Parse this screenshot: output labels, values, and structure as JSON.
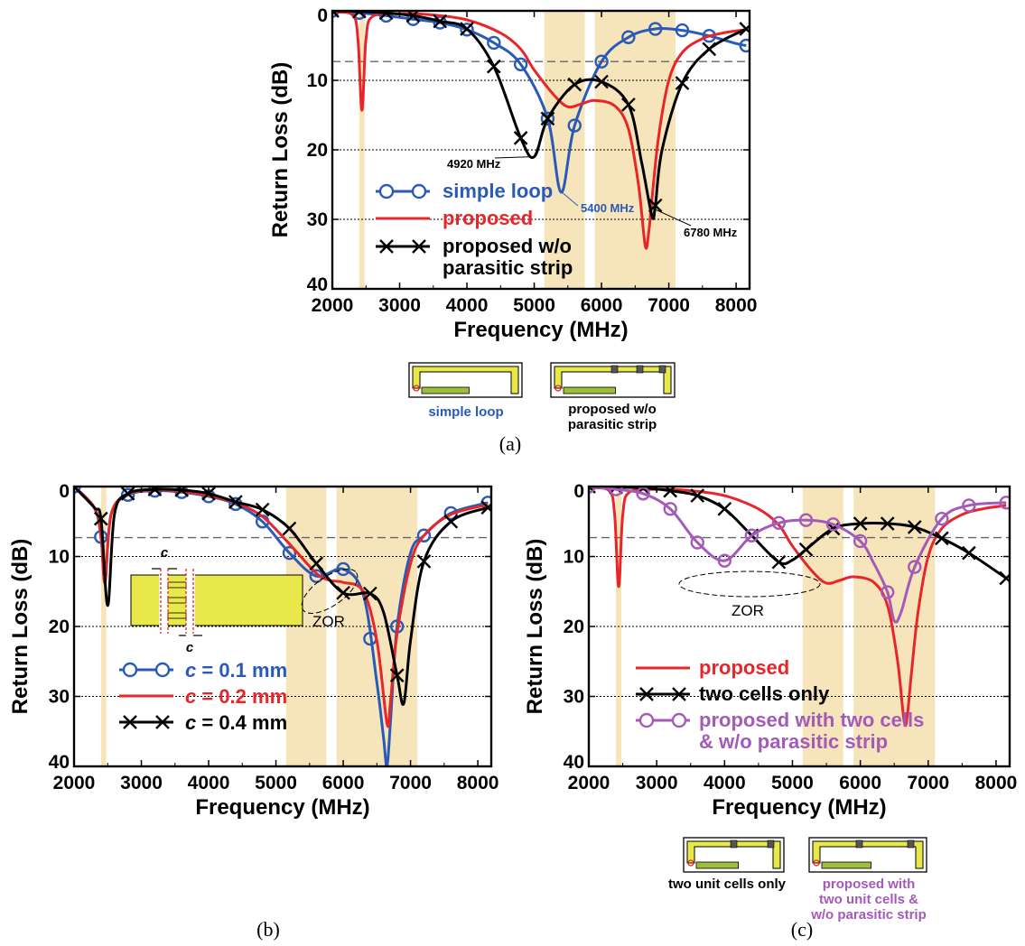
{
  "chart_data": [
    {
      "panel": "(a)",
      "type": "line",
      "xlabel": "Frequency (MHz)",
      "ylabel": "Return Loss (dB)",
      "xlim": [
        2000,
        8200
      ],
      "ylim": [
        40,
        0
      ],
      "xticks": [
        "2000",
        "3000",
        "4000",
        "5000",
        "6000",
        "7000",
        "8000"
      ],
      "yticks": [
        "0",
        "10",
        "20",
        "30",
        "40"
      ],
      "reference_line_db": 7.3,
      "bands_mhz": [
        [
          2400,
          2480
        ],
        [
          5150,
          5750
        ],
        [
          5900,
          7100
        ]
      ],
      "series": [
        {
          "name": "simple loop",
          "color": "#2a5ab8",
          "marker": "circle",
          "x": [
            2000,
            2400,
            2800,
            3200,
            3600,
            4000,
            4400,
            4800,
            5200,
            5400,
            5600,
            6000,
            6400,
            6800,
            7200,
            7600,
            8000,
            8150
          ],
          "y": [
            0,
            0.3,
            0.7,
            1.2,
            1.7,
            2.7,
            4.6,
            7.7,
            15.5,
            26.1,
            16.5,
            7.3,
            3.8,
            2.6,
            2.8,
            3.6,
            4.7,
            5.0
          ],
          "markers_x": [
            2000,
            2400,
            2800,
            3200,
            3600,
            4000,
            4400,
            4800,
            5200,
            5600,
            6000,
            6400,
            6800,
            7200,
            7600,
            8150
          ]
        },
        {
          "name": "proposed",
          "color": "#e8262a",
          "marker": "none",
          "x": [
            2000,
            2300,
            2380,
            2440,
            2500,
            2600,
            3000,
            3500,
            4000,
            4500,
            4800,
            5000,
            5300,
            5500,
            5700,
            5900,
            6200,
            6400,
            6550,
            6650,
            6700,
            6750,
            6850,
            7000,
            7200,
            7500,
            7800,
            8150
          ],
          "y": [
            0.2,
            0.6,
            4,
            14.3,
            4,
            0.8,
            0.4,
            0.6,
            1.3,
            3.2,
            5.5,
            8.5,
            12.2,
            13.8,
            13.4,
            12.9,
            13.7,
            17,
            25,
            33.8,
            32,
            27,
            18,
            10,
            6,
            4,
            3.2,
            2.7
          ],
          "markers_x": []
        },
        {
          "name": "proposed w/o parasitic strip",
          "color": "#000000",
          "marker": "x",
          "x": [
            2000,
            2400,
            2800,
            3200,
            3600,
            4000,
            4400,
            4800,
            5000,
            5200,
            5600,
            6000,
            6400,
            6600,
            6750,
            6800,
            6900,
            7200,
            7600,
            8150
          ],
          "y": [
            0,
            0.1,
            0.3,
            0.7,
            1.5,
            2.6,
            8,
            18.3,
            21,
            15.5,
            10.6,
            10.2,
            13.5,
            22,
            29.5,
            28,
            20,
            10.4,
            5.5,
            2.6
          ],
          "markers_x": [
            2000,
            2400,
            2800,
            3200,
            3600,
            4000,
            4400,
            4800,
            5200,
            5600,
            6000,
            6400,
            6800,
            7200,
            7600,
            8150
          ]
        }
      ],
      "annotations": [
        "4920 MHz",
        "5400 MHz",
        "6780 MHz"
      ],
      "captions": [
        "simple loop",
        "proposed w/o parasitic strip"
      ]
    },
    {
      "panel": "(b)",
      "type": "line",
      "xlabel": "Frequency (MHz)",
      "ylabel": "Return Loss (dB)",
      "xlim": [
        2000,
        8200
      ],
      "ylim": [
        40,
        0
      ],
      "xticks": [
        "2000",
        "3000",
        "4000",
        "5000",
        "6000",
        "7000",
        "8000"
      ],
      "yticks": [
        "0",
        "10",
        "20",
        "30",
        "40"
      ],
      "reference_line_db": 7.3,
      "bands_mhz": [
        [
          2400,
          2480
        ],
        [
          5150,
          5750
        ],
        [
          5900,
          7100
        ]
      ],
      "series": [
        {
          "name": "c = 0.1 mm",
          "color": "#2a5ab8",
          "marker": "circle",
          "x": [
            2000,
            2300,
            2400,
            2460,
            2550,
            2800,
            3200,
            3600,
            4000,
            4400,
            4800,
            5200,
            5600,
            6000,
            6300,
            6500,
            6600,
            6650,
            6700,
            6800,
            7000,
            7200,
            7600,
            8150
          ],
          "y": [
            0,
            3,
            7.2,
            13.5,
            4,
            1.2,
            0.6,
            0.8,
            1.4,
            2.5,
            5,
            9.5,
            12.8,
            11.8,
            15.5,
            28,
            36,
            40,
            34,
            20,
            9.5,
            7,
            3.8,
            2.3
          ],
          "markers_x": [
            2000,
            2400,
            2800,
            3200,
            3600,
            4000,
            4400,
            4800,
            5200,
            5600,
            6000,
            6400,
            6800,
            7200,
            7600,
            8150
          ]
        },
        {
          "name": "c = 0.2 mm",
          "color": "#e8262a",
          "marker": "none",
          "x": [
            2000,
            2300,
            2400,
            2460,
            2550,
            2800,
            3200,
            3600,
            4000,
            4400,
            4800,
            5200,
            5600,
            5800,
            6000,
            6300,
            6500,
            6650,
            6700,
            6800,
            7000,
            7200,
            7600,
            8150
          ],
          "y": [
            0,
            3,
            7,
            13.8,
            4,
            1.1,
            0.5,
            0.7,
            1.3,
            2.3,
            4.3,
            8.2,
            12.4,
            13.4,
            13.7,
            15,
            22,
            33.8,
            31,
            21,
            11,
            7,
            4,
            2.6
          ],
          "markers_x": []
        },
        {
          "name": "c = 0.4 mm",
          "color": "#000000",
          "marker": "x",
          "x": [
            2000,
            2300,
            2400,
            2500,
            2600,
            2800,
            3200,
            3600,
            4000,
            4400,
            4800,
            5200,
            5600,
            6000,
            6400,
            6600,
            6800,
            6900,
            7000,
            7200,
            7600,
            8150
          ],
          "y": [
            0,
            3,
            4.6,
            17,
            4,
            1,
            0.4,
            0.5,
            1,
            2.2,
            3.3,
            6,
            11,
            15.2,
            15.3,
            18,
            27,
            31,
            22,
            10.7,
            5,
            3
          ],
          "markers_x": [
            2000,
            2400,
            2800,
            3200,
            3600,
            4000,
            4400,
            4800,
            5200,
            5600,
            6000,
            6400,
            6800,
            7200,
            7600,
            8150
          ]
        }
      ],
      "inset_label": "c",
      "annotations": [
        "ZOR"
      ]
    },
    {
      "panel": "(c)",
      "type": "line",
      "xlabel": "Frequency (MHz)",
      "ylabel": "Return Loss (dB)",
      "xlim": [
        2000,
        8200
      ],
      "ylim": [
        40,
        0
      ],
      "xticks": [
        "2000",
        "3000",
        "4000",
        "5000",
        "6000",
        "7000",
        "8000"
      ],
      "yticks": [
        "0",
        "10",
        "20",
        "30",
        "40"
      ],
      "reference_line_db": 7.3,
      "bands_mhz": [
        [
          2400,
          2480
        ],
        [
          5150,
          5750
        ],
        [
          5900,
          7100
        ]
      ],
      "series": [
        {
          "name": "proposed",
          "color": "#e8262a",
          "marker": "none",
          "x": [
            2000,
            2300,
            2380,
            2440,
            2500,
            2600,
            3000,
            3500,
            4000,
            4500,
            4800,
            5000,
            5300,
            5500,
            5700,
            5900,
            6200,
            6400,
            6550,
            6650,
            6700,
            6750,
            6850,
            7000,
            7200,
            7500,
            7800,
            8150
          ],
          "y": [
            0.2,
            0.6,
            4,
            14.3,
            4,
            0.8,
            0.4,
            0.6,
            1.3,
            3.2,
            5.5,
            8.5,
            12.2,
            13.8,
            13.4,
            12.9,
            13.7,
            17,
            25,
            33.8,
            32,
            27,
            18,
            10,
            6,
            4,
            3.2,
            2.7
          ],
          "markers_x": []
        },
        {
          "name": "two cells only",
          "color": "#000000",
          "marker": "x",
          "x": [
            2000,
            2400,
            2800,
            3200,
            3600,
            4000,
            4400,
            4800,
            5000,
            5200,
            5600,
            6000,
            6400,
            6800,
            7200,
            7600,
            8150
          ],
          "y": [
            0,
            0.1,
            0.2,
            0.6,
            1.3,
            3.2,
            7,
            10.8,
            10.5,
            9,
            6,
            5.3,
            5.3,
            5.8,
            7.4,
            9.5,
            13.1
          ],
          "markers_x": [
            2000,
            2400,
            2800,
            3200,
            3600,
            4000,
            4400,
            4800,
            5200,
            5600,
            6000,
            6400,
            6800,
            7200,
            7600,
            8150
          ]
        },
        {
          "name": "proposed with two cells & w/o parasitic strip",
          "color": "#a45ab8",
          "marker": "circle",
          "x": [
            2000,
            2400,
            2800,
            3200,
            3600,
            4000,
            4400,
            4800,
            5200,
            5600,
            6000,
            6200,
            6400,
            6500,
            6600,
            6800,
            7200,
            7600,
            8150
          ],
          "y": [
            0,
            0.4,
            1,
            3.2,
            8,
            10.6,
            7,
            5.2,
            4.8,
            5.4,
            7.8,
            11,
            15.1,
            19.2,
            18,
            11.5,
            4.6,
            2.7,
            2.3
          ],
          "markers_x": [
            2000,
            2400,
            2800,
            3200,
            3600,
            4000,
            4400,
            4800,
            5200,
            5600,
            6000,
            6400,
            6800,
            7200,
            7600,
            8150
          ]
        }
      ],
      "annotations": [
        "ZOR"
      ],
      "captions": [
        "two unit cells only",
        "proposed with two unit cells & w/o parasitic strip"
      ]
    }
  ]
}
